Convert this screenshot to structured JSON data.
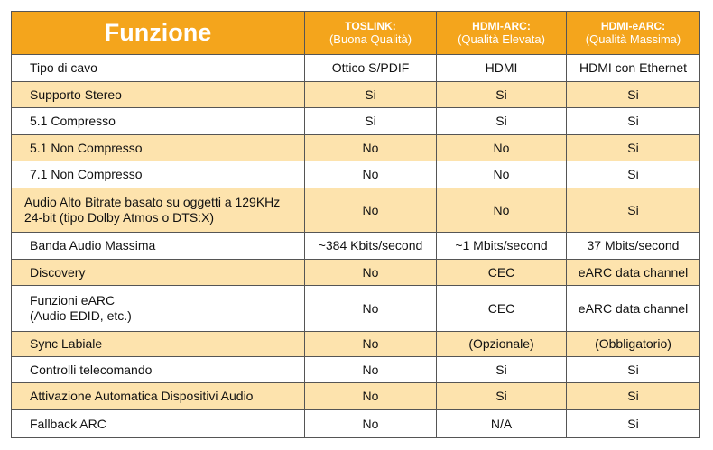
{
  "header": {
    "feature": "Funzione",
    "columns": [
      {
        "name": "TOSLINK:",
        "quality": "(Buona Qualità)"
      },
      {
        "name": "HDMI-ARC:",
        "quality": "(Qualità Elevata)"
      },
      {
        "name": "HDMI-eARC:",
        "quality": "(Qualità Massima)"
      }
    ]
  },
  "table": {
    "rows": [
      [
        "Tipo di cavo",
        "Ottico S/PDIF",
        "HDMI",
        "HDMI con Ethernet"
      ],
      [
        "Supporto Stereo",
        "Si",
        "Si",
        "Si"
      ],
      [
        "5.1 Compresso",
        "Si",
        "Si",
        "Si"
      ],
      [
        "5.1 Non Compresso",
        "No",
        "No",
        "Si"
      ],
      [
        "7.1 Non Compresso",
        "No",
        "No",
        "Si"
      ],
      [
        [
          "Audio Alto Bitrate basato su oggetti a 129KHz",
          "24-bit (tipo Dolby Atmos o DTS:X)"
        ],
        "No",
        "No",
        "Si"
      ],
      [
        "Banda Audio Massima",
        "~384 Kbits/second",
        "~1 Mbits/second",
        "37 Mbits/second"
      ],
      [
        "Discovery",
        "No",
        "CEC",
        "eARC data channel"
      ],
      [
        [
          "Funzioni eARC",
          "(Audio EDID, etc.)"
        ],
        "No",
        "CEC",
        "eARC data channel"
      ],
      [
        "Sync Labiale",
        "No",
        "(Opzionale)",
        "(Obbligatorio)"
      ],
      [
        "Controlli telecomando",
        "No",
        "Si",
        "Si"
      ],
      [
        "Attivazione Automatica Dispositivi Audio",
        "No",
        "Si",
        "Si"
      ],
      [
        "Fallback ARC",
        "No",
        "N/A",
        "Si"
      ]
    ]
  }
}
